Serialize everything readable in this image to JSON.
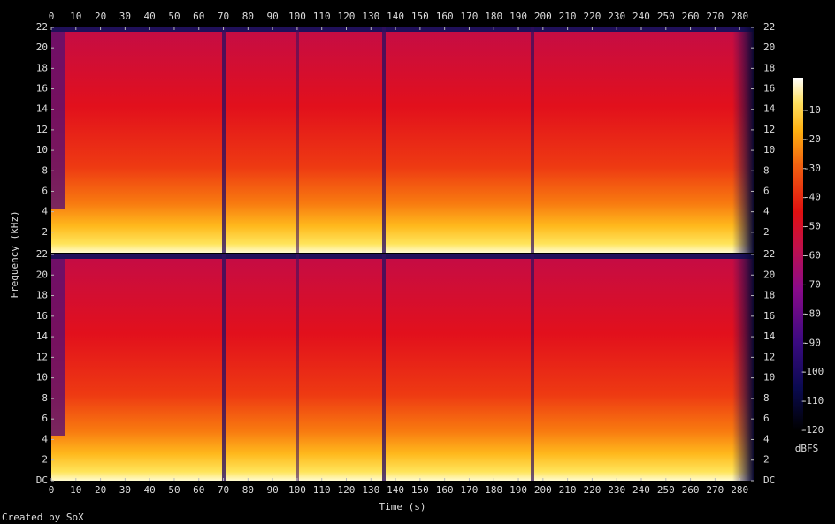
{
  "figure": {
    "ylabel": "Frequency (kHz)",
    "footer": "Created by SoX"
  },
  "colorbar": {
    "label": "dBFS",
    "lim": [
      -120,
      0
    ],
    "ticks": [
      -10,
      -20,
      -30,
      -40,
      -50,
      -60,
      -70,
      -80,
      -90,
      -100,
      -110,
      -120
    ]
  },
  "chart_data": [
    {
      "type": "spectrogram",
      "xlim": [
        0,
        285.7
      ],
      "xticks": [
        0,
        10,
        20,
        30,
        40,
        50,
        60,
        70,
        80,
        90,
        100,
        110,
        120,
        130,
        140,
        150,
        160,
        170,
        180,
        190,
        200,
        210,
        220,
        230,
        240,
        250,
        260,
        270,
        280
      ],
      "ylim": [
        0,
        22
      ],
      "yticks": [
        2,
        4,
        6,
        8,
        10,
        12,
        14,
        16,
        18,
        20,
        22
      ]
    },
    {
      "type": "spectrogram",
      "xlabel": "Time (s)",
      "xlim": [
        0,
        285.7
      ],
      "xticks": [
        0,
        10,
        20,
        30,
        40,
        50,
        60,
        70,
        80,
        90,
        100,
        110,
        120,
        130,
        140,
        150,
        160,
        170,
        180,
        190,
        200,
        210,
        220,
        230,
        240,
        250,
        260,
        270,
        280
      ],
      "ylim": [
        0,
        22
      ],
      "yticks": [
        {
          "value": 0,
          "label": "DC"
        },
        2,
        4,
        6,
        8,
        10,
        12,
        14,
        16,
        18,
        20,
        22
      ]
    }
  ]
}
